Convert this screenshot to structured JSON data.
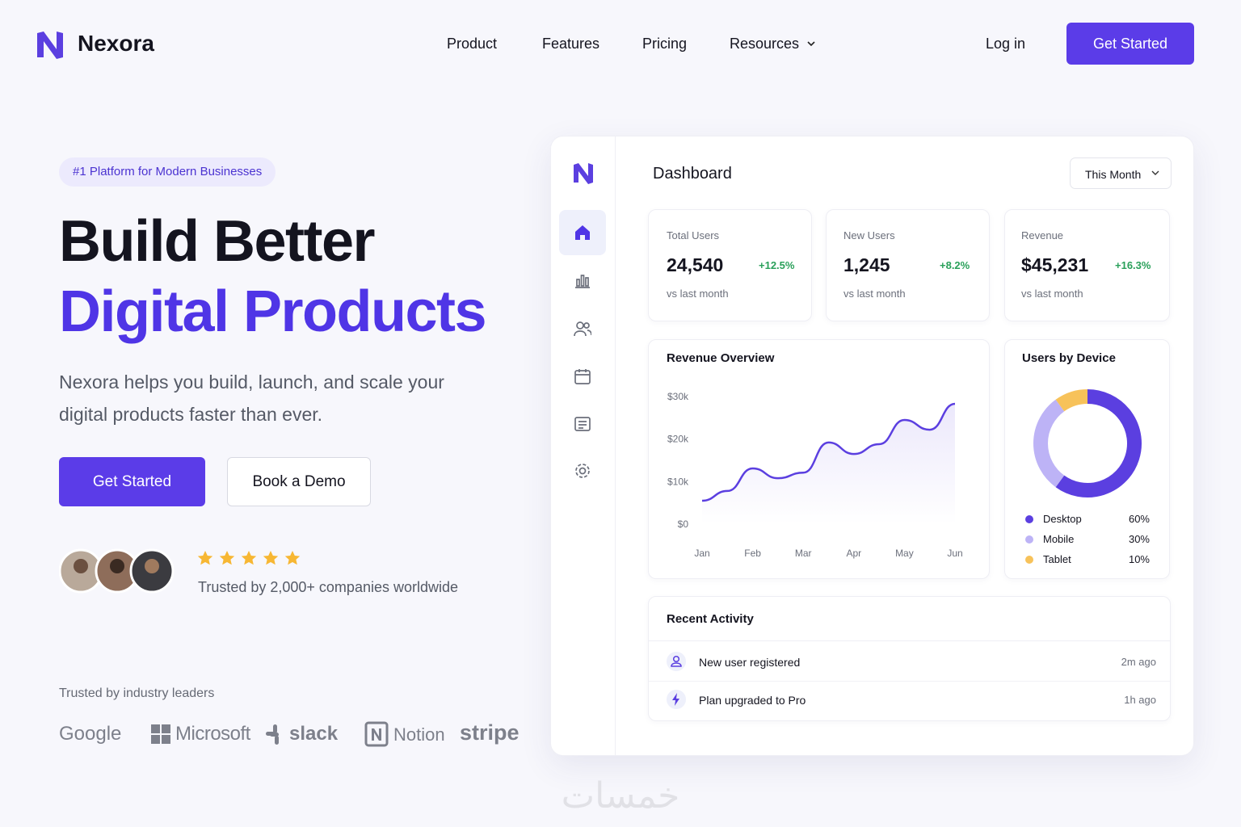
{
  "nav": {
    "brand": "Nexora",
    "links": [
      "Product",
      "Features",
      "Pricing",
      "Resources"
    ],
    "login": "Log in",
    "cta": "Get Started"
  },
  "hero": {
    "badge": "#1 Platform for Modern Businesses",
    "title_line1": "Build Better",
    "title_line2": "Digital Products",
    "subtitle": "Nexora helps you build, launch, and scale your digital products faster than ever.",
    "primary_button": "Get Started",
    "secondary_button": "Book a Demo",
    "trust_text": "Trusted by 2,000+ companies worldwide"
  },
  "logos": {
    "heading": "Trusted by industry leaders",
    "names": [
      "Google",
      "Microsoft",
      "slack",
      "Notion",
      "stripe"
    ]
  },
  "dashboard": {
    "title": "Dashboard",
    "period": "This Month",
    "stats": [
      {
        "label": "Total Users",
        "value": "24,540",
        "change": "+12.5%",
        "note": "vs last month"
      },
      {
        "label": "New Users",
        "value": "1,245",
        "change": "+8.2%",
        "note": "vs last month"
      },
      {
        "label": "Revenue",
        "value": "$45,231",
        "change": "+16.3%",
        "note": "vs last month"
      }
    ],
    "activity": {
      "title": "Recent Activity",
      "items": [
        {
          "text": "New user registered",
          "time": "2m ago"
        },
        {
          "text": "Plan upgraded to Pro",
          "time": "1h ago"
        }
      ]
    }
  },
  "chart_data": [
    {
      "type": "line",
      "title": "Revenue Overview",
      "categories": [
        "Jan",
        null,
        "Feb",
        null,
        "Mar",
        null,
        "Apr",
        null,
        "May",
        null,
        "Jun"
      ],
      "values": [
        5500,
        7800,
        13100,
        10800,
        12100,
        19200,
        16500,
        18800,
        24500,
        22200,
        28300
      ],
      "color": "#5b3fe0",
      "ylim": [
        0,
        30000
      ],
      "yticks": [
        {
          "value": 0,
          "label": "$0"
        },
        {
          "value": 10000,
          "label": "$10k"
        },
        {
          "value": 20000,
          "label": "$20k"
        },
        {
          "value": 30000,
          "label": "$30k"
        }
      ]
    },
    {
      "type": "pie",
      "title": "Users by Device",
      "categories": [
        "Desktop",
        "Mobile",
        "Tablet"
      ],
      "values": [
        60,
        30,
        10
      ],
      "value_labels": [
        "60%",
        "30%",
        "10%"
      ],
      "colors": [
        "#5b3fe0",
        "#bdb3f6",
        "#f7c25a"
      ]
    }
  ],
  "watermark": "خمسات"
}
